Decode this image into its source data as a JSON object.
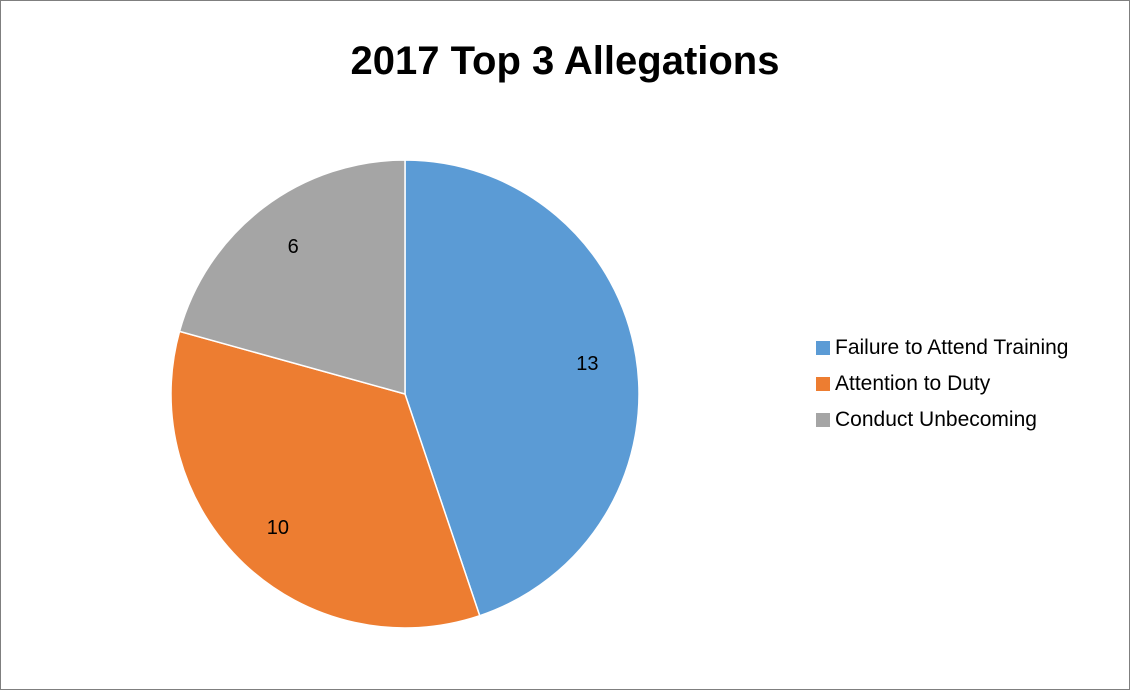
{
  "chart_data": {
    "type": "pie",
    "title": "2017 Top 3 Allegations",
    "categories": [
      "Failure to Attend Training",
      "Attention to Duty",
      "Conduct Unbecoming"
    ],
    "values": [
      13,
      10,
      6
    ],
    "colors": [
      "#5b9bd5",
      "#ed7d31",
      "#a5a5a5"
    ],
    "data_labels": [
      "13",
      "10",
      "6"
    ],
    "legend_position": "right",
    "start_angle": "top",
    "direction": "clockwise"
  }
}
